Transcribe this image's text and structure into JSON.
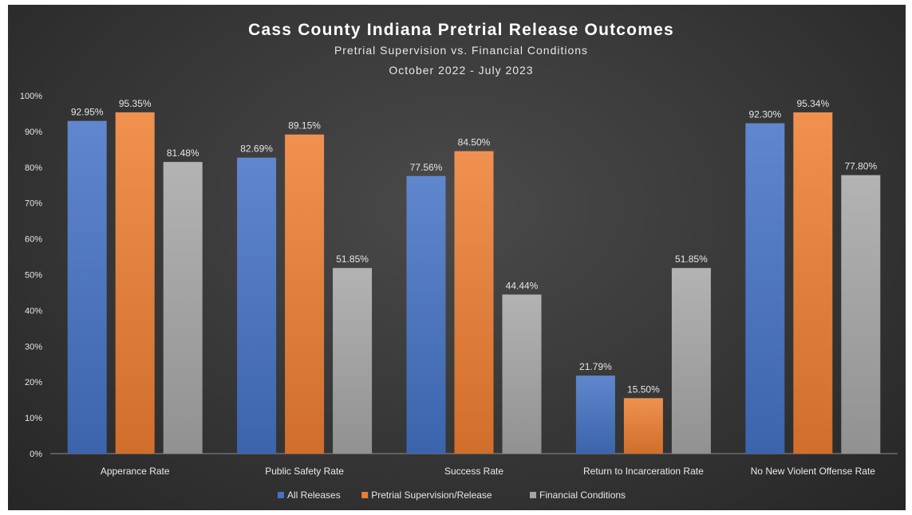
{
  "chart_data": {
    "type": "bar",
    "title": "Cass County Indiana Pretrial Release Outcomes",
    "subtitle_lines": [
      "Pretrial Supervision vs. Financial Conditions",
      "October 2022 - July 2023"
    ],
    "categories": [
      "Apperance Rate",
      "Public Safety Rate",
      "Success Rate",
      "Return to Incarceration Rate",
      "No New Violent Offense Rate"
    ],
    "series": [
      {
        "name": "All Releases",
        "color": "#4472C4",
        "values": [
          92.95,
          82.69,
          77.56,
          21.79,
          92.3
        ],
        "labels": [
          "92.95%",
          "82.69%",
          "77.56%",
          "21.79%",
          "92.30%"
        ]
      },
      {
        "name": "Pretrial Supervision/Release",
        "color": "#ED7D31",
        "values": [
          95.35,
          89.15,
          84.5,
          15.5,
          95.34
        ],
        "labels": [
          "95.35%",
          "89.15%",
          "84.50%",
          "15.50%",
          "95.34%"
        ]
      },
      {
        "name": "Financial Conditions",
        "color": "#A5A5A5",
        "values": [
          81.48,
          51.85,
          44.44,
          51.85,
          77.8
        ],
        "labels": [
          "81.48%",
          "51.85%",
          "44.44%",
          "51.85%",
          "77.80%"
        ]
      }
    ],
    "ylim": [
      0,
      100
    ],
    "yticks": [
      "0%",
      "10%",
      "20%",
      "30%",
      "40%",
      "50%",
      "60%",
      "70%",
      "80%",
      "90%",
      "100%"
    ],
    "grid": false,
    "legend_position": "bottom"
  }
}
